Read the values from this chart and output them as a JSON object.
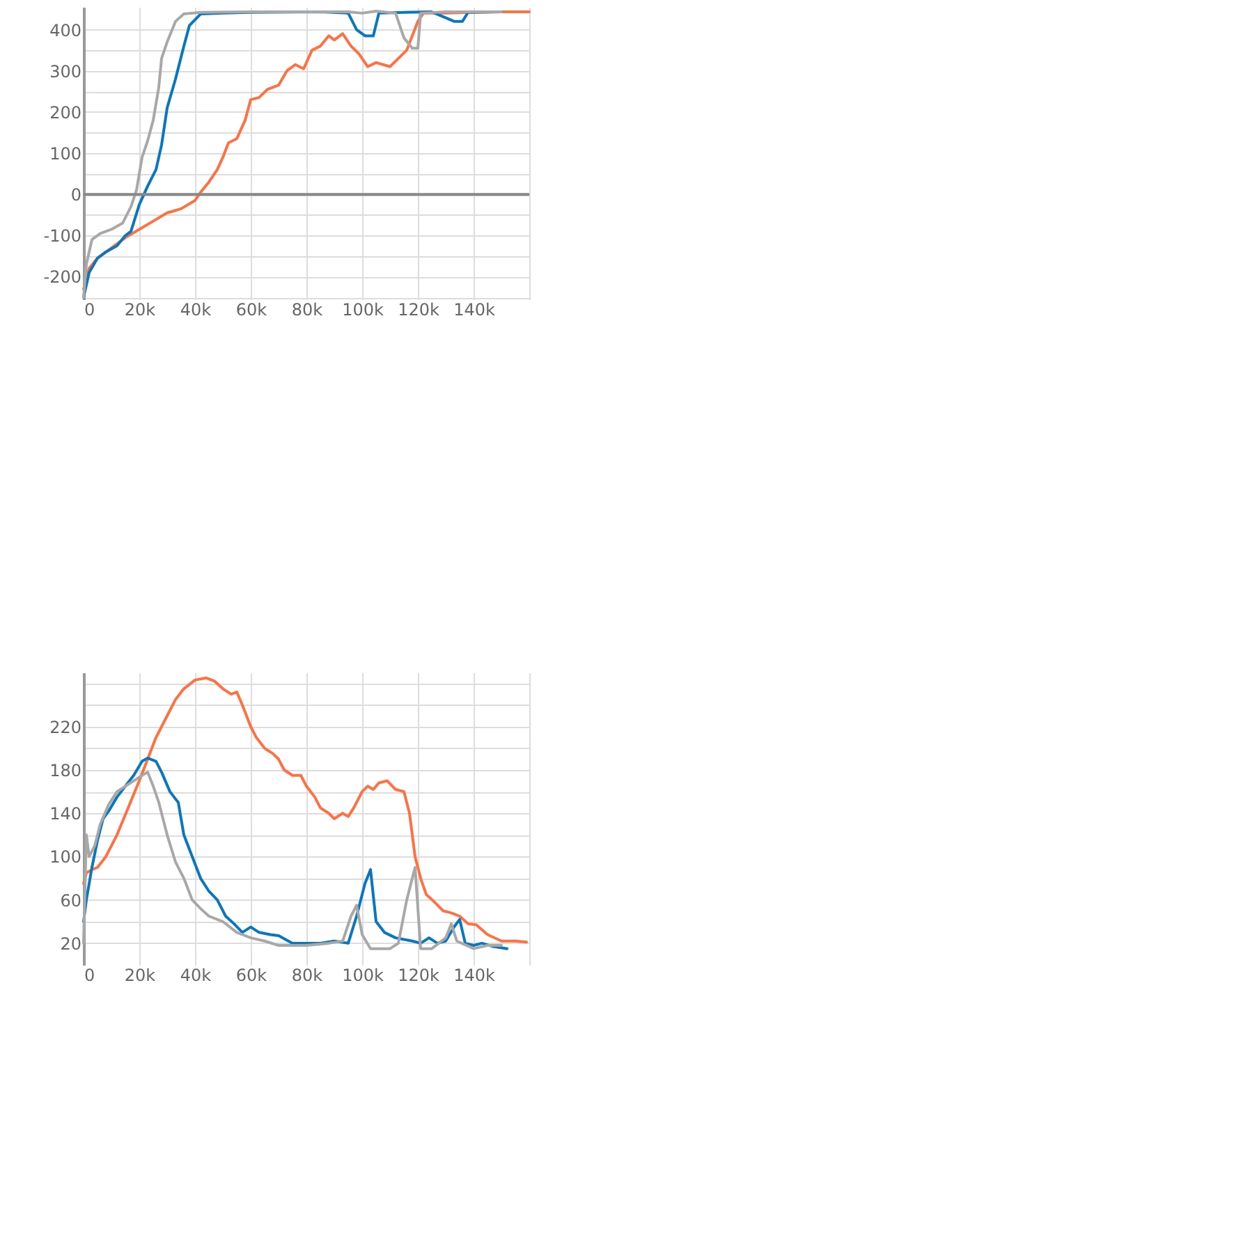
{
  "chart_data": [
    {
      "type": "line",
      "xlim": [
        0,
        160000
      ],
      "ylim": [
        -255,
        455
      ],
      "xticks": [
        {
          "value": 0,
          "label": "0"
        },
        {
          "value": 20000,
          "label": "20k"
        },
        {
          "value": 40000,
          "label": "40k"
        },
        {
          "value": 60000,
          "label": "60k"
        },
        {
          "value": 80000,
          "label": "80k"
        },
        {
          "value": 100000,
          "label": "100k"
        },
        {
          "value": 120000,
          "label": "120k"
        },
        {
          "value": 140000,
          "label": "140k"
        },
        {
          "value": 160000,
          "label": null
        }
      ],
      "yticks": [
        {
          "value": -250,
          "label": null
        },
        -200,
        {
          "value": -150,
          "label": null
        },
        -100,
        {
          "value": -50,
          "label": null
        },
        0,
        {
          "value": 50,
          "label": null
        },
        100,
        {
          "value": 150,
          "label": null
        },
        200,
        {
          "value": 250,
          "label": null
        },
        300,
        {
          "value": 350,
          "label": null
        },
        400
      ],
      "grid": true,
      "line_style": "solid",
      "ref_lines": [
        {
          "axis": "y",
          "value": 0,
          "color": "#888888"
        }
      ],
      "series": [
        {
          "color": "#ff7043",
          "x": [
            0,
            2000,
            5000,
            10000,
            15000,
            20000,
            25000,
            30000,
            35000,
            40000,
            42000,
            45000,
            48000,
            50000,
            52000,
            55000,
            58000,
            60000,
            63000,
            66000,
            70000,
            73000,
            76000,
            79000,
            82000,
            85000,
            88000,
            90000,
            93000,
            96000,
            99000,
            102000,
            105000,
            110000,
            113000,
            116000,
            120000,
            122000,
            125000,
            130000,
            140000,
            150000,
            160000
          ],
          "values": [
            -230,
            -180,
            -155,
            -130,
            -105,
            -85,
            -65,
            -45,
            -35,
            -15,
            5,
            30,
            60,
            90,
            125,
            135,
            180,
            230,
            235,
            255,
            265,
            300,
            315,
            305,
            350,
            360,
            385,
            375,
            390,
            360,
            340,
            310,
            320,
            310,
            330,
            350,
            420,
            440,
            440,
            440,
            442,
            443,
            443
          ]
        },
        {
          "color": "#0877bd",
          "x": [
            0,
            2000,
            5000,
            8000,
            12000,
            15000,
            17000,
            20000,
            23000,
            26000,
            28000,
            30000,
            33000,
            36000,
            38000,
            42000,
            50000,
            60000,
            85000,
            95000,
            98000,
            101000,
            104000,
            106000,
            115000,
            125000,
            133000,
            136000,
            138000,
            150000
          ],
          "values": [
            -250,
            -190,
            -155,
            -140,
            -125,
            -100,
            -90,
            -25,
            20,
            60,
            120,
            210,
            280,
            360,
            410,
            438,
            440,
            442,
            443,
            440,
            400,
            385,
            385,
            440,
            442,
            443,
            420,
            420,
            442,
            443
          ]
        },
        {
          "color": "#a8a8a8",
          "x": [
            0,
            1000,
            3000,
            6000,
            10000,
            14000,
            17000,
            19000,
            21000,
            23000,
            25000,
            27000,
            28000,
            30000,
            33000,
            36000,
            42000,
            60000,
            95000,
            100000,
            105000,
            112000,
            115000,
            118000,
            120000,
            121000,
            130000,
            150000
          ],
          "values": [
            -250,
            -170,
            -110,
            -95,
            -85,
            -70,
            -30,
            10,
            90,
            130,
            180,
            260,
            330,
            370,
            420,
            438,
            442,
            443,
            443,
            440,
            445,
            440,
            380,
            355,
            355,
            440,
            443,
            443
          ]
        }
      ]
    },
    {
      "type": "line",
      "xlim": [
        0,
        160000
      ],
      "ylim": [
        0,
        270
      ],
      "xticks": [
        {
          "value": 0,
          "label": "0"
        },
        {
          "value": 20000,
          "label": "20k"
        },
        {
          "value": 40000,
          "label": "40k"
        },
        {
          "value": 60000,
          "label": "60k"
        },
        {
          "value": 80000,
          "label": "80k"
        },
        {
          "value": 100000,
          "label": "100k"
        },
        {
          "value": 120000,
          "label": "120k"
        },
        {
          "value": 140000,
          "label": "140k"
        },
        {
          "value": 160000,
          "label": null
        }
      ],
      "yticks": [
        20,
        {
          "value": 40,
          "label": null
        },
        60,
        {
          "value": 80,
          "label": null
        },
        100,
        {
          "value": 120,
          "label": null
        },
        140,
        {
          "value": 160,
          "label": null
        },
        180,
        {
          "value": 200,
          "label": null
        },
        220,
        {
          "value": 240,
          "label": null
        },
        {
          "value": 260,
          "label": null
        }
      ],
      "grid": true,
      "line_style": "solid",
      "series": [
        {
          "color": "#ff7043",
          "x": [
            0,
            1000,
            3000,
            5000,
            8000,
            12000,
            16000,
            20000,
            23000,
            26000,
            30000,
            33000,
            36000,
            40000,
            44000,
            47000,
            50000,
            53000,
            55000,
            57000,
            60000,
            62000,
            65000,
            68000,
            70000,
            72000,
            75000,
            78000,
            80000,
            83000,
            85000,
            88000,
            90000,
            93000,
            95000,
            97000,
            100000,
            102000,
            104000,
            106000,
            109000,
            112000,
            115000,
            117000,
            119000,
            121000,
            123000,
            126000,
            129000,
            132000,
            135000,
            138000,
            141000,
            145000,
            150000,
            155000,
            159000
          ],
          "values": [
            75,
            85,
            88,
            90,
            100,
            120,
            145,
            170,
            190,
            210,
            230,
            245,
            255,
            263,
            265,
            262,
            255,
            250,
            252,
            240,
            220,
            210,
            200,
            195,
            190,
            180,
            175,
            175,
            165,
            155,
            145,
            140,
            135,
            140,
            137,
            145,
            160,
            165,
            162,
            168,
            170,
            162,
            160,
            140,
            100,
            80,
            65,
            58,
            50,
            48,
            45,
            38,
            37,
            28,
            22,
            22,
            21
          ]
        },
        {
          "color": "#0877bd",
          "x": [
            0,
            1000,
            3000,
            5000,
            7000,
            9000,
            12000,
            15000,
            18000,
            21000,
            23000,
            26000,
            28000,
            31000,
            34000,
            36000,
            39000,
            42000,
            45000,
            48000,
            51000,
            54000,
            57000,
            60000,
            63000,
            67000,
            70000,
            75000,
            80000,
            85000,
            90000,
            95000,
            98000,
            101000,
            103000,
            105000,
            108000,
            112000,
            118000,
            121000,
            124000,
            127000,
            130000,
            133000,
            135000,
            137000,
            140000,
            143000,
            147000,
            152000
          ],
          "values": [
            40,
            60,
            90,
            115,
            135,
            142,
            155,
            165,
            175,
            188,
            191,
            188,
            178,
            160,
            150,
            120,
            100,
            80,
            68,
            60,
            45,
            38,
            30,
            35,
            30,
            28,
            27,
            20,
            20,
            20,
            22,
            20,
            45,
            75,
            88,
            40,
            30,
            25,
            22,
            20,
            25,
            20,
            22,
            35,
            42,
            20,
            18,
            20,
            17,
            15
          ]
        },
        {
          "color": "#a8a8a8",
          "x": [
            0,
            1000,
            2000,
            4000,
            6000,
            9000,
            12000,
            15000,
            18000,
            21000,
            23000,
            25000,
            27000,
            30000,
            33000,
            36000,
            39000,
            42000,
            45000,
            50000,
            55000,
            60000,
            65000,
            70000,
            80000,
            88000,
            93000,
            96000,
            98000,
            100000,
            103000,
            110000,
            113000,
            116000,
            119000,
            121000,
            125000,
            130000,
            132000,
            134000,
            140000,
            145000,
            150000
          ],
          "values": [
            20,
            120,
            100,
            110,
            130,
            148,
            160,
            165,
            170,
            175,
            178,
            165,
            150,
            120,
            95,
            80,
            60,
            52,
            45,
            40,
            30,
            25,
            22,
            18,
            18,
            20,
            22,
            45,
            55,
            28,
            15,
            15,
            20,
            60,
            90,
            15,
            15,
            25,
            38,
            22,
            15,
            18,
            18
          ]
        }
      ]
    }
  ]
}
